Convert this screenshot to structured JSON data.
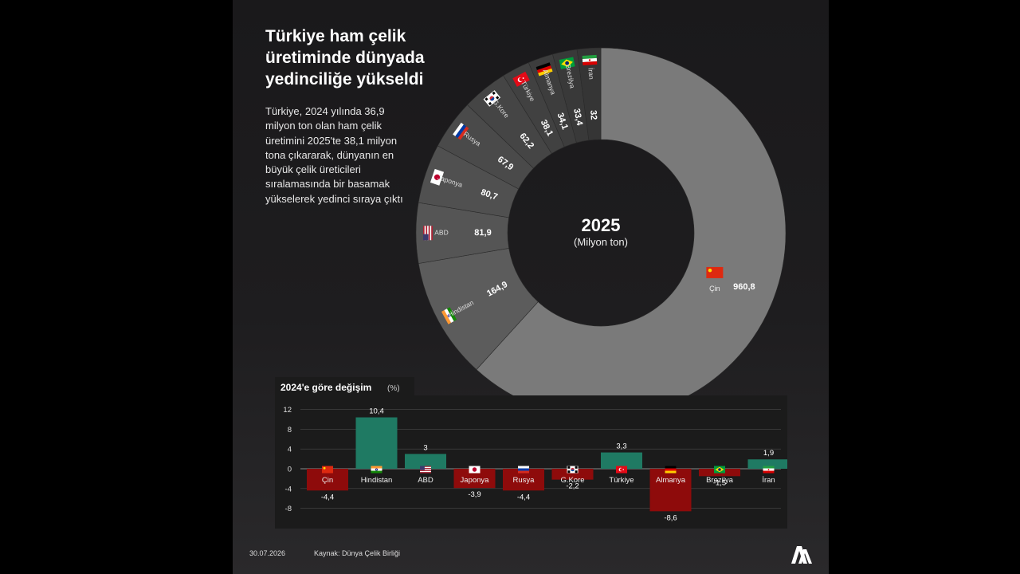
{
  "title": "Türkiye ham çelik üretiminde dünyada yedinciliğe yükseldi",
  "description": "Türkiye, 2024 yılında 36,9 milyon ton olan ham çelik üretimini 2025'te 38,1 milyon tona çıkararak, dünyanın en büyük çelik üreticileri sıralamasında bir basamak yükselerek yedinci sıraya çıktı",
  "date": "30.07.2026",
  "source": "Kaynak: Dünya Çelik Birliği",
  "chart_data": [
    {
      "type": "pie",
      "variant": "donut",
      "center_title": "2025",
      "center_subtitle": "(Milyon ton)",
      "categories": [
        "Çin",
        "Hindistan",
        "ABD",
        "Japonya",
        "Rusya",
        "G.Kore",
        "Türkiye",
        "Almanya",
        "Brezilya",
        "İran"
      ],
      "values": [
        960.8,
        164.9,
        81.9,
        80.7,
        67.9,
        62.2,
        38.1,
        34.1,
        33.4,
        32
      ],
      "value_labels": [
        "960,8",
        "164,9",
        "81,9",
        "80,7",
        "67,9",
        "62,2",
        "38,1",
        "34,1",
        "33,4",
        "32"
      ],
      "colors": [
        "#7a7a7a",
        "#5c5c5c",
        "#555555",
        "#505050",
        "#4a4a4a",
        "#454545",
        "#414141",
        "#3d3d3d",
        "#393939",
        "#353535"
      ]
    },
    {
      "type": "bar",
      "title": "2024'e göre değişim",
      "title_unit": "(%)",
      "categories": [
        "Çin",
        "Hindistan",
        "ABD",
        "Japonya",
        "Rusya",
        "G.Kore",
        "Türkiye",
        "Almanya",
        "Brezilya",
        "İran"
      ],
      "values": [
        -4.4,
        10.4,
        3,
        -3.9,
        -4.4,
        -2.2,
        3.3,
        -8.6,
        -1.5,
        1.9
      ],
      "value_labels": [
        "-4,4",
        "10,4",
        "3",
        "-3,9",
        "-4,4",
        "-2,2",
        "3,3",
        "-8,6",
        "-1,5",
        "1,9"
      ],
      "yticks": [
        12,
        8,
        4,
        0,
        -4,
        -8
      ],
      "ylim": [
        -9,
        13
      ],
      "positive_color": "#1f7a63",
      "negative_color": "#8e0b0b",
      "grid": true
    }
  ],
  "flags": [
    "china-flag",
    "india-flag",
    "usa-flag",
    "japan-flag",
    "russia-flag",
    "south-korea-flag",
    "turkey-flag",
    "germany-flag",
    "brazil-flag",
    "iran-flag"
  ],
  "logo": "aa-logo-icon"
}
